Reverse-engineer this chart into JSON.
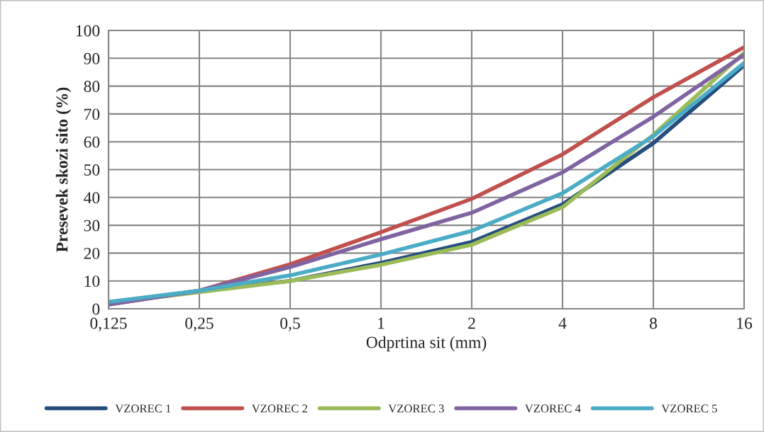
{
  "chart_data": {
    "type": "line",
    "xlabel": "Odprtina sit (mm)",
    "ylabel": "Presevek skozi sito (%)",
    "categories": [
      "0,125",
      "0,25",
      "0,5",
      "1",
      "2",
      "4",
      "8",
      "16"
    ],
    "series": [
      {
        "name": "VZOREC 1",
        "color": "#254e7e",
        "values": [
          2,
          6.5,
          10,
          16.5,
          24,
          37.5,
          59.5,
          87.5
        ]
      },
      {
        "name": "VZOREC 2",
        "color": "#c0504d",
        "values": [
          1.5,
          6.5,
          16,
          27.5,
          39.5,
          55.5,
          76,
          94
        ]
      },
      {
        "name": "VZOREC 3",
        "color": "#9bbb59",
        "values": [
          2,
          6,
          10,
          15.8,
          23,
          36.5,
          62.5,
          92
        ]
      },
      {
        "name": "VZOREC 4",
        "color": "#8064a2",
        "values": [
          1.5,
          6.5,
          15,
          25,
          34.5,
          49,
          69,
          91.3
        ]
      },
      {
        "name": "VZOREC 5",
        "color": "#4bacc6",
        "values": [
          2.5,
          6.5,
          12,
          19.5,
          28,
          41.5,
          62,
          88.3
        ]
      }
    ],
    "ylim": [
      0,
      100
    ],
    "yticks": [
      0,
      10,
      20,
      30,
      40,
      50,
      60,
      70,
      80,
      90,
      100
    ],
    "grid": true,
    "legend": "bottom",
    "marker": "none",
    "line_style": "solid"
  }
}
